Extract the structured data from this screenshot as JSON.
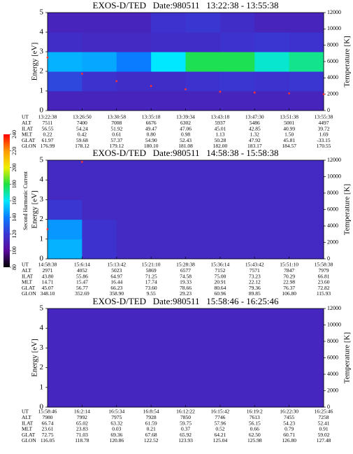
{
  "colorbar": {
    "label": "Second Harmonic Current",
    "zlim": [
      80,
      240
    ],
    "ticks": [
      80,
      100,
      120,
      140,
      160,
      180,
      200,
      220,
      240
    ],
    "colorscale": [
      "#000000",
      "#5a0a9c",
      "#3a36d2",
      "#0a7cff",
      "#00e8ff",
      "#20e040",
      "#f0f000",
      "#ff9900",
      "#ff0000"
    ]
  },
  "chart_data": [
    {
      "type": "spectrogram",
      "title": "EXOS-D/TED   Date:980511   13:22:38 - 13:55:38",
      "ylabel": "Energy [eV]",
      "y2label": "Temperature [K]",
      "ylim": [
        0,
        5
      ],
      "yticks": [
        0,
        1,
        2,
        3,
        4,
        5
      ],
      "y2lim": [
        0,
        12000
      ],
      "y2ticks": [
        0,
        2000,
        4000,
        6000,
        8000,
        10000,
        12000
      ],
      "z": [
        [
          112,
          112,
          112,
          112,
          112,
          112,
          112,
          112
        ],
        [
          125,
          118,
          116,
          116,
          118,
          120,
          118,
          120
        ],
        [
          150,
          148,
          140,
          160,
          178,
          178,
          165,
          172
        ],
        [
          116,
          114,
          114,
          116,
          116,
          118,
          120,
          118
        ],
        [
          112,
          112,
          112,
          118,
          120,
          116,
          112,
          112
        ]
      ],
      "temperature": {
        "color": "#ff3030",
        "axis": "y2",
        "values": [
          6500,
          4500,
          3600,
          3000,
          2600,
          2300,
          2200,
          2100,
          2000
        ]
      },
      "ephemeris": [
        {
          "label": "UT",
          "values": [
            "13:22:38",
            "13:26:50",
            "13:30:58",
            "13:35:18",
            "13:39:34",
            "13:43:18",
            "13:47:30",
            "13:51:38",
            "13:55:38"
          ]
        },
        {
          "label": "ALT",
          "values": [
            "7511",
            "7400",
            "7008",
            "6676",
            "6302",
            "5937",
            "5486",
            "5001",
            "4497"
          ]
        },
        {
          "label": "ILAT",
          "values": [
            "56.55",
            "54.24",
            "51.92",
            "49.47",
            "47.06",
            "45.01",
            "42.85",
            "40.99",
            "39.72"
          ]
        },
        {
          "label": "MLT",
          "values": [
            "0.22",
            "0.42",
            "0.61",
            "0.80",
            "0.98",
            "1.13",
            "1.32",
            "1.50",
            "1.69"
          ]
        },
        {
          "label": "GLAT",
          "values": [
            "61.97",
            "59.68",
            "57.37",
            "54.90",
            "52.43",
            "50.28",
            "47.92",
            "45.81",
            "-33.15"
          ]
        },
        {
          "label": "GLON",
          "values": [
            "176.99",
            "178.12",
            "179.12",
            "180.10",
            "181.08",
            "182.00",
            "183.17",
            "184.57",
            "170.55"
          ]
        }
      ]
    },
    {
      "type": "spectrogram",
      "title": "EXOS-D/TED   Date:980511   14:58:38 - 15:58:38",
      "ylabel": "Energy [eV]",
      "y2label": "Temperature [K]",
      "ylim": [
        0,
        5
      ],
      "yticks": [
        0,
        1,
        2,
        3,
        4,
        5
      ],
      "y2lim": [
        0,
        12000
      ],
      "y2ticks": [
        0,
        2000,
        4000,
        6000,
        8000,
        10000,
        12000
      ],
      "z": [
        [
          150,
          118,
          114,
          114,
          114,
          114,
          114,
          114
        ],
        [
          145,
          118,
          114,
          114,
          114,
          114,
          114,
          114
        ],
        [
          120,
          114,
          114,
          114,
          114,
          114,
          114,
          114
        ],
        [
          114,
          114,
          114,
          114,
          114,
          114,
          114,
          114
        ],
        [
          114,
          114,
          114,
          114,
          114,
          114,
          114,
          114
        ]
      ],
      "temperature": {
        "color": "#ff3030",
        "axis": "y2",
        "values": [
          3600,
          11800,
          null,
          null,
          null,
          null,
          null,
          null,
          null
        ]
      },
      "ephemeris": [
        {
          "label": "UT",
          "values": [
            "14:58:38",
            "15:6:14",
            "15:13:42",
            "15:21:10",
            "15:28:38",
            "15:36:14",
            "15:43:42",
            "15:51:10",
            "15:58:38"
          ]
        },
        {
          "label": "ALT",
          "values": [
            "2971",
            "4052",
            "5023",
            "5869",
            "6577",
            "7152",
            "7571",
            "7847",
            "7979"
          ]
        },
        {
          "label": "ILAT",
          "values": [
            "43.80",
            "55.86",
            "64.97",
            "71.25",
            "74.58",
            "75.00",
            "73.23",
            "70.29",
            "66.81"
          ]
        },
        {
          "label": "MLT",
          "values": [
            "14.71",
            "15.47",
            "16.44",
            "17.74",
            "19.33",
            "20.91",
            "22.12",
            "22.98",
            "23.60"
          ]
        },
        {
          "label": "GLAT",
          "values": [
            "45.07",
            "56.77",
            "66.23",
            "73.60",
            "78.66",
            "80.64",
            "79.36",
            "76.37",
            "72.82"
          ]
        },
        {
          "label": "GLON",
          "values": [
            "348.10",
            "352.69",
            "358.90",
            "9.55",
            "29.23",
            "60.96",
            "89.85",
            "106.80",
            "115.93"
          ]
        }
      ]
    },
    {
      "type": "spectrogram",
      "title": "EXOS-D/TED   Date:980511   15:58:46 - 16:25:46",
      "ylabel": "Energy [eV]",
      "y2label": "Temperature [K]",
      "ylim": [
        0,
        5
      ],
      "yticks": [
        0,
        1,
        2,
        3,
        4,
        5
      ],
      "y2lim": [
        0,
        12000
      ],
      "y2ticks": [
        0,
        2000,
        4000,
        6000,
        8000,
        10000,
        12000
      ],
      "z": [
        [
          113,
          113,
          113,
          113,
          113,
          113,
          113,
          113
        ],
        [
          113,
          113,
          113,
          113,
          113,
          113,
          113,
          113
        ],
        [
          113,
          113,
          113,
          113,
          113,
          113,
          113,
          113
        ],
        [
          113,
          113,
          113,
          113,
          113,
          113,
          113,
          113
        ],
        [
          113,
          113,
          113,
          113,
          113,
          113,
          113,
          113
        ]
      ],
      "ephemeris": [
        {
          "label": "UT",
          "values": [
            "15:58:46",
            "16:2:14",
            "16:5:34",
            "16:8:54",
            "16:12:22",
            "16:15:42",
            "16:19:2",
            "16:22:30",
            "16:25:46"
          ]
        },
        {
          "label": "ALT",
          "values": [
            "7980",
            "7992",
            "7975",
            "7928",
            "7850",
            "7746",
            "7613",
            "7455",
            "7258"
          ]
        },
        {
          "label": "ILAT",
          "values": [
            "66.74",
            "65.02",
            "63.32",
            "61.59",
            "59.75",
            "57.96",
            "56.15",
            "54.23",
            "52.41"
          ]
        },
        {
          "label": "MLT",
          "values": [
            "23.61",
            "23.83",
            "0.03",
            "0.21",
            "0.37",
            "0.52",
            "0.66",
            "0.79",
            "0.91"
          ]
        },
        {
          "label": "GLAT",
          "values": [
            "72.75",
            "71.03",
            "69.36",
            "67.68",
            "65.92",
            "64.21",
            "62.50",
            "60.71",
            "59.02"
          ]
        },
        {
          "label": "GLON",
          "values": [
            "116.05",
            "118.78",
            "120.86",
            "122.52",
            "123.93",
            "125.04",
            "125.98",
            "126.80",
            "127.48"
          ]
        }
      ]
    }
  ]
}
